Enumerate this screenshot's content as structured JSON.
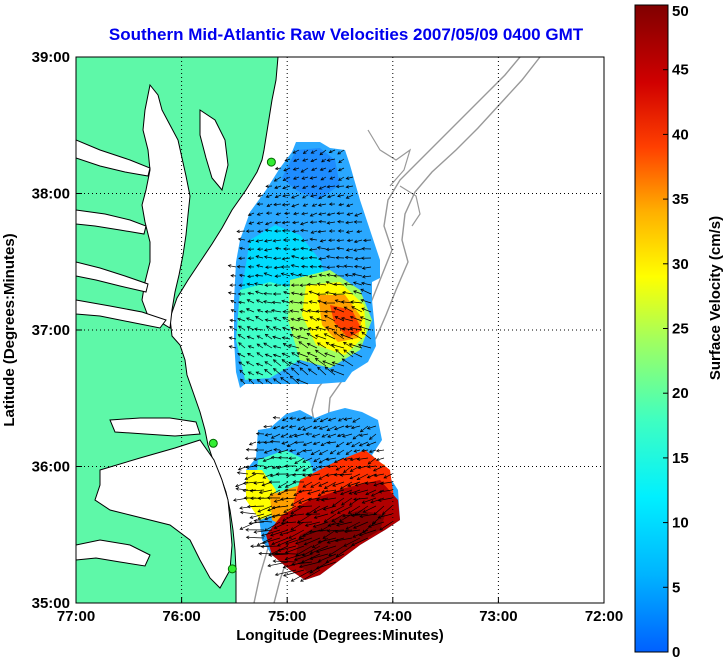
{
  "title": "Southern Mid-Atlantic Raw Velocities 2007/05/09 0400 GMT",
  "map": {
    "xlabel": "Longitude (Degrees:Minutes)",
    "ylabel": "Latitude (Degrees:Minutes)",
    "x_ticks": [
      "77:00",
      "76:00",
      "75:00",
      "74:00",
      "73:00",
      "72:00"
    ],
    "y_ticks": [
      "39:00",
      "38:00",
      "37:00",
      "36:00",
      "35:00"
    ],
    "lon_range": [
      -77,
      -72
    ],
    "lat_range": [
      35,
      39
    ],
    "land_color": "#5ef8a8",
    "water_color": "#ffffff",
    "grid": "dotted",
    "stations": [
      {
        "lon": -75.15,
        "lat": 38.23
      },
      {
        "lon": -75.7,
        "lat": 36.17
      },
      {
        "lon": -75.52,
        "lat": 35.25
      }
    ]
  },
  "colorbar": {
    "label": "Surface Velocity (cm/s)",
    "ticks": [
      "0",
      "5",
      "10",
      "15",
      "20",
      "25",
      "30",
      "35",
      "40",
      "45",
      "50"
    ],
    "range": [
      0,
      50
    ],
    "colors": [
      "#0060ff",
      "#00c8ff",
      "#28ffd8",
      "#a0ff60",
      "#ffff00",
      "#ffa000",
      "#ff3000",
      "#c00000",
      "#800000"
    ]
  }
}
